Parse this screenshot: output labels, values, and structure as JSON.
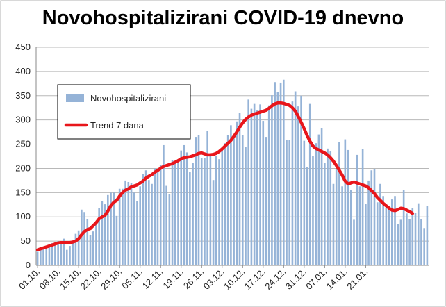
{
  "chart_data": {
    "type": "bar",
    "title": "Novohospitalizirani COVID-19 dnevno",
    "xlabel": "",
    "ylabel": "",
    "ylim": [
      0,
      450
    ],
    "yticks": [
      0,
      50,
      100,
      150,
      200,
      250,
      300,
      350,
      400,
      450
    ],
    "grid": "horizontal",
    "legend_position": "top-left",
    "x_tick_labels": [
      "01.10.",
      "08.10.",
      "15.10.",
      "22.10.",
      "29.10.",
      "05.11.",
      "12.11.",
      "19.11.",
      "26.11.",
      "03.12.",
      "10.12.",
      "17.12.",
      "24.12.",
      "31.12.",
      "07.01.",
      "14.01.",
      "21.01."
    ],
    "start_date": "2020-10-01",
    "series": [
      {
        "name": "Novohospitalizirani",
        "kind": "bar",
        "color": "#95b3d7",
        "values": [
          28,
          33,
          36,
          40,
          44,
          46,
          48,
          50,
          45,
          55,
          32,
          40,
          48,
          65,
          72,
          115,
          110,
          95,
          63,
          70,
          87,
          118,
          133,
          126,
          145,
          150,
          150,
          102,
          158,
          158,
          175,
          172,
          170,
          150,
          133,
          163,
          188,
          196,
          176,
          168,
          200,
          198,
          207,
          248,
          164,
          147,
          217,
          215,
          219,
          237,
          248,
          233,
          192,
          212,
          265,
          268,
          222,
          222,
          278,
          230,
          176,
          226,
          219,
          243,
          252,
          268,
          289,
          262,
          297,
          315,
          268,
          244,
          342,
          323,
          333,
          320,
          332,
          298,
          265,
          330,
          351,
          378,
          358,
          377,
          383,
          258,
          258,
          338,
          359,
          328,
          350,
          257,
          203,
          333,
          225,
          252,
          270,
          283,
          212,
          241,
          235,
          168,
          198,
          255,
          163,
          260,
          238,
          156,
          94,
          228,
          163,
          240,
          127,
          175,
          196,
          198,
          130,
          168,
          143,
          118,
          122,
          136,
          143,
          85,
          94,
          155,
          107,
          95,
          118,
          108,
          128,
          95,
          77,
          123
        ]
      },
      {
        "name": "Trend 7 dana",
        "kind": "line",
        "color": "#e8161b",
        "values": [
          32,
          34,
          36,
          38,
          40,
          42,
          44,
          46,
          47,
          47,
          47,
          47,
          48,
          50,
          55,
          63,
          70,
          74,
          76,
          82,
          88,
          96,
          100,
          103,
          112,
          123,
          130,
          134,
          143,
          150,
          155,
          158,
          162,
          164,
          166,
          170,
          174,
          180,
          184,
          187,
          192,
          196,
          200,
          204,
          206,
          208,
          210,
          213,
          216,
          220,
          222,
          223,
          224,
          226,
          228,
          231,
          232,
          230,
          228,
          228,
          229,
          231,
          235,
          240,
          246,
          252,
          258,
          266,
          275,
          285,
          294,
          301,
          306,
          310,
          312,
          314,
          316,
          318,
          320,
          324,
          329,
          333,
          335,
          335,
          334,
          332,
          330,
          325,
          318,
          307,
          295,
          282,
          268,
          256,
          246,
          241,
          238,
          235,
          232,
          228,
          222,
          215,
          206,
          196,
          186,
          174,
          168,
          170,
          172,
          170,
          168,
          166,
          164,
          160,
          154,
          148,
          140,
          134,
          128,
          123,
          118,
          114,
          113,
          115,
          118,
          117,
          114,
          111,
          107
        ]
      }
    ]
  }
}
